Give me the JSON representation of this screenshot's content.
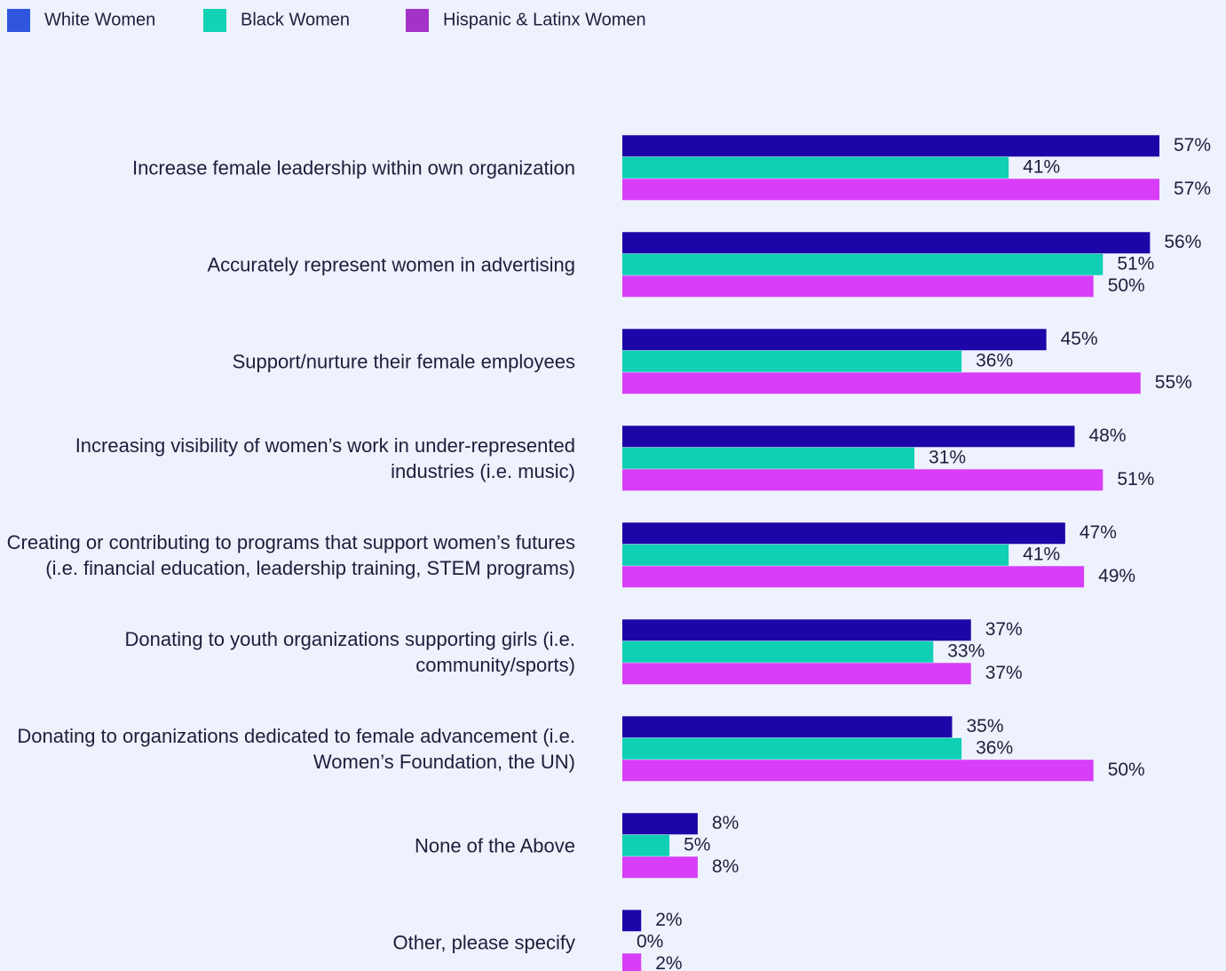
{
  "chart_data": {
    "type": "bar",
    "orientation": "horizontal",
    "categories": [
      "Increase female leadership within own organization",
      "Accurately represent women in advertising",
      "Support/nurture their female employees",
      "Increasing visibility of women’s work in under-represented industries (i.e. music)",
      "Creating or contributing to programs that support women’s futures (i.e. financial education, leadership training, STEM programs)",
      "Donating to youth organizations supporting girls (i.e. community/sports)",
      "Donating to organizations dedicated to female advancement (i.e. Women’s Foundation, the UN)",
      "None of the Above",
      "Other, please specify"
    ],
    "series": [
      {
        "name": "White Women",
        "color": "#1c06a8",
        "legend_color": "#3056e0",
        "values": [
          57,
          56,
          45,
          48,
          47,
          37,
          35,
          8,
          2
        ],
        "value_labels": [
          "57%",
          "56%",
          "45%",
          "48%",
          "47%",
          "37%",
          "35%",
          "8%",
          "2%"
        ]
      },
      {
        "name": "Black Women",
        "color": "#0fcfb4",
        "legend_color": "#12d3b6",
        "values": [
          41,
          51,
          36,
          31,
          41,
          33,
          36,
          5,
          0
        ],
        "value_labels": [
          "41%",
          "51%",
          "36%",
          "31%",
          "41%",
          "33%",
          "36%",
          "5%",
          "0%"
        ]
      },
      {
        "name": "Hispanic & Latinx Women",
        "color": "#d83df7",
        "legend_color": "#a332c8",
        "values": [
          57,
          50,
          55,
          51,
          49,
          37,
          50,
          8,
          2
        ],
        "value_labels": [
          "57%",
          "50%",
          "55%",
          "51%",
          "49%",
          "37%",
          "50%",
          "8%",
          "2%"
        ]
      }
    ],
    "legend": "top-left"
  }
}
